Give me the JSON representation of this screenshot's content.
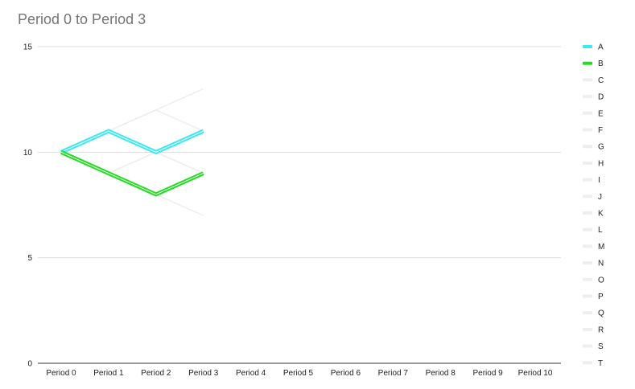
{
  "chart_data": {
    "type": "line",
    "title": "Period 0 to Period 3",
    "xlabel": "",
    "ylabel": "",
    "ylim": [
      0,
      15
    ],
    "yticks": [
      "0",
      "5",
      "10",
      "15"
    ],
    "categories": [
      "Period 0",
      "Period 1",
      "Period 2",
      "Period 3",
      "Period 4",
      "Period 5",
      "Period 6",
      "Period 7",
      "Period 8",
      "Period 9",
      "Period 10"
    ],
    "grid": true,
    "legend_position": "right",
    "series": [
      {
        "name": "A",
        "color": "#3DE8F0",
        "highlighted": true,
        "values": [
          10,
          11,
          10,
          11,
          null,
          null,
          null,
          null,
          null,
          null,
          null
        ]
      },
      {
        "name": "B",
        "color": "#22DD22",
        "highlighted": true,
        "values": [
          10,
          9,
          8,
          9,
          null,
          null,
          null,
          null,
          null,
          null,
          null
        ]
      },
      {
        "name": "C",
        "color": "#EEEEEE",
        "highlighted": false,
        "values": [
          10,
          11,
          12,
          13,
          null,
          null,
          null,
          null,
          null,
          null,
          null
        ]
      },
      {
        "name": "D",
        "color": "#EEEEEE",
        "highlighted": false,
        "values": [
          10,
          11,
          12,
          11,
          null,
          null,
          null,
          null,
          null,
          null,
          null
        ]
      },
      {
        "name": "E",
        "color": "#EEEEEE",
        "highlighted": false,
        "values": [
          10,
          11,
          10,
          9,
          null,
          null,
          null,
          null,
          null,
          null,
          null
        ]
      },
      {
        "name": "F",
        "color": "#EEEEEE",
        "highlighted": false,
        "values": [
          10,
          9,
          10,
          11,
          null,
          null,
          null,
          null,
          null,
          null,
          null
        ]
      },
      {
        "name": "G",
        "color": "#EEEEEE",
        "highlighted": false,
        "values": [
          10,
          9,
          10,
          9,
          null,
          null,
          null,
          null,
          null,
          null,
          null
        ]
      },
      {
        "name": "H",
        "color": "#EEEEEE",
        "highlighted": false,
        "values": [
          10,
          9,
          8,
          7,
          null,
          null,
          null,
          null,
          null,
          null,
          null
        ]
      },
      {
        "name": "I",
        "color": "#EEEEEE",
        "highlighted": false,
        "values": [
          null,
          null,
          null,
          null,
          null,
          null,
          null,
          null,
          null,
          null,
          null
        ]
      },
      {
        "name": "J",
        "color": "#EEEEEE",
        "highlighted": false,
        "values": [
          null,
          null,
          null,
          null,
          null,
          null,
          null,
          null,
          null,
          null,
          null
        ]
      },
      {
        "name": "K",
        "color": "#EEEEEE",
        "highlighted": false,
        "values": [
          null,
          null,
          null,
          null,
          null,
          null,
          null,
          null,
          null,
          null,
          null
        ]
      },
      {
        "name": "L",
        "color": "#EEEEEE",
        "highlighted": false,
        "values": [
          null,
          null,
          null,
          null,
          null,
          null,
          null,
          null,
          null,
          null,
          null
        ]
      },
      {
        "name": "M",
        "color": "#EEEEEE",
        "highlighted": false,
        "values": [
          null,
          null,
          null,
          null,
          null,
          null,
          null,
          null,
          null,
          null,
          null
        ]
      },
      {
        "name": "N",
        "color": "#EEEEEE",
        "highlighted": false,
        "values": [
          null,
          null,
          null,
          null,
          null,
          null,
          null,
          null,
          null,
          null,
          null
        ]
      },
      {
        "name": "O",
        "color": "#EEEEEE",
        "highlighted": false,
        "values": [
          null,
          null,
          null,
          null,
          null,
          null,
          null,
          null,
          null,
          null,
          null
        ]
      },
      {
        "name": "P",
        "color": "#EEEEEE",
        "highlighted": false,
        "values": [
          null,
          null,
          null,
          null,
          null,
          null,
          null,
          null,
          null,
          null,
          null
        ]
      },
      {
        "name": "Q",
        "color": "#EEEEEE",
        "highlighted": false,
        "values": [
          null,
          null,
          null,
          null,
          null,
          null,
          null,
          null,
          null,
          null,
          null
        ]
      },
      {
        "name": "R",
        "color": "#EEEEEE",
        "highlighted": false,
        "values": [
          null,
          null,
          null,
          null,
          null,
          null,
          null,
          null,
          null,
          null,
          null
        ]
      },
      {
        "name": "S",
        "color": "#EEEEEE",
        "highlighted": false,
        "values": [
          null,
          null,
          null,
          null,
          null,
          null,
          null,
          null,
          null,
          null,
          null
        ]
      },
      {
        "name": "T",
        "color": "#EEEEEE",
        "highlighted": false,
        "values": [
          null,
          null,
          null,
          null,
          null,
          null,
          null,
          null,
          null,
          null,
          null
        ]
      }
    ]
  }
}
